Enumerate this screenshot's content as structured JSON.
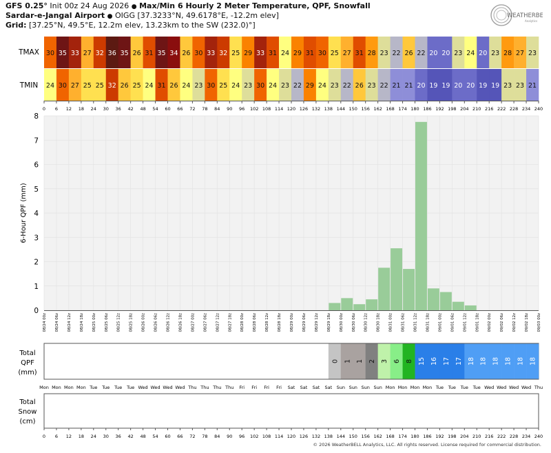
{
  "header": {
    "line1_prefix": "GFS 0.25°",
    "line1_init": " Init 00z 24 Aug 2026 ",
    "line1_title": "Max/Min 6 Hourly 2 Meter Temperature,  QPF,  Snowfall",
    "line2_name": "Sardar-e-Jangal Airport",
    "line2_rest": " OIGG [37.3233°N, 49.6178°E, -12.2m elev]",
    "line3_label": "Grid:",
    "line3_rest": " [37.25°N, 49.5°E, 12.2m elev, 13.23km to the SW (232.0)°]"
  },
  "logo": {
    "text": "WEATHERBELL",
    "sub": "Analytics"
  },
  "footer": "© 2026 WeatherBELL Analytics, LLC. All rights reserved. License required for commercial distribution.",
  "colors": {
    "qpf_bar": "#99cc99",
    "grid": "#e3e3e3",
    "plot_bg": "#f2f2f2"
  },
  "chart_data": {
    "type": "bar",
    "forecast_hour_ticks": [
      "0",
      "6",
      "12",
      "18",
      "24",
      "30",
      "36",
      "42",
      "48",
      "54",
      "60",
      "66",
      "72",
      "78",
      "84",
      "90",
      "96",
      "102",
      "108",
      "114",
      "120",
      "126",
      "132",
      "138",
      "144",
      "150",
      "156",
      "162",
      "168",
      "174",
      "180",
      "186",
      "192",
      "198",
      "204",
      "210",
      "216",
      "222",
      "228",
      "234",
      "240"
    ],
    "date_labels": [
      "08/24 00z",
      "08/24 06z",
      "08/24 12z",
      "08/24 18z",
      "08/25 00z",
      "08/25 06z",
      "08/25 12z",
      "08/25 18z",
      "08/26 00z",
      "08/26 06z",
      "08/26 12z",
      "08/26 18z",
      "08/27 00z",
      "08/27 06z",
      "08/27 12z",
      "08/27 18z",
      "08/28 00z",
      "08/28 06z",
      "08/28 12z",
      "08/28 18z",
      "08/29 00z",
      "08/29 06z",
      "08/29 12z",
      "08/29 18z",
      "08/30 00z",
      "08/30 06z",
      "08/30 12z",
      "08/30 18z",
      "08/31 00z",
      "08/31 06z",
      "08/31 12z",
      "08/31 18z",
      "09/01 00z",
      "09/01 06z",
      "09/01 12z",
      "09/01 18z",
      "09/02 00z",
      "09/02 06z",
      "09/02 12z",
      "09/02 18z",
      "09/03 00z"
    ],
    "day_labels": [
      "Mon",
      "Mon",
      "Mon",
      "Mon",
      "Tue",
      "Tue",
      "Tue",
      "Tue",
      "Wed",
      "Wed",
      "Wed",
      "Wed",
      "Thu",
      "Thu",
      "Thu",
      "Thu",
      "Fri",
      "Fri",
      "Fri",
      "Fri",
      "Sat",
      "Sat",
      "Sat",
      "Sat",
      "Sun",
      "Sun",
      "Sun",
      "Sun",
      "Mon",
      "Mon",
      "Mon",
      "Mon",
      "Tue",
      "Tue",
      "Tue",
      "Tue",
      "Wed",
      "Wed",
      "Wed",
      "Wed",
      "Thu"
    ],
    "tmax": {
      "label": "TMAX",
      "values": [
        30,
        35,
        33,
        27,
        32,
        36,
        35,
        26,
        31,
        35,
        34,
        26,
        30,
        33,
        32,
        25,
        29,
        33,
        31,
        24,
        29,
        31,
        30,
        25,
        27,
        31,
        28,
        23,
        22,
        26,
        22,
        20,
        20,
        23,
        24,
        20,
        23,
        28,
        27,
        23
      ]
    },
    "tmin": {
      "label": "TMIN",
      "values": [
        24,
        30,
        27,
        25,
        25,
        32,
        26,
        25,
        24,
        31,
        26,
        24,
        23,
        30,
        25,
        24,
        23,
        30,
        24,
        23,
        22,
        29,
        24,
        23,
        22,
        26,
        23,
        22,
        21,
        21,
        20,
        19,
        19,
        20,
        20,
        19,
        19,
        23,
        23,
        21
      ]
    },
    "qpf": {
      "ylabel": "6-Hour QPF (mm)",
      "ylim": [
        0,
        8
      ],
      "yticks": [
        0,
        1,
        2,
        3,
        4,
        5,
        6,
        7,
        8
      ],
      "values": [
        0,
        0,
        0,
        0,
        0,
        0,
        0,
        0,
        0,
        0,
        0,
        0,
        0,
        0,
        0,
        0,
        0,
        0,
        0,
        0,
        0,
        0,
        0,
        0.3,
        0.5,
        0.25,
        0.45,
        1.75,
        2.55,
        1.7,
        7.75,
        0.9,
        0.75,
        0.35,
        0.2,
        0,
        0,
        0,
        0,
        0
      ]
    },
    "total_qpf": {
      "label": "Total QPF (mm)",
      "start_index": 23,
      "values": [
        0,
        1,
        1,
        2,
        3,
        6,
        8,
        15,
        16,
        17,
        17,
        18,
        18,
        18,
        18,
        18,
        18
      ]
    },
    "total_snow": {
      "label": "Total Snow (cm)",
      "values": []
    }
  }
}
